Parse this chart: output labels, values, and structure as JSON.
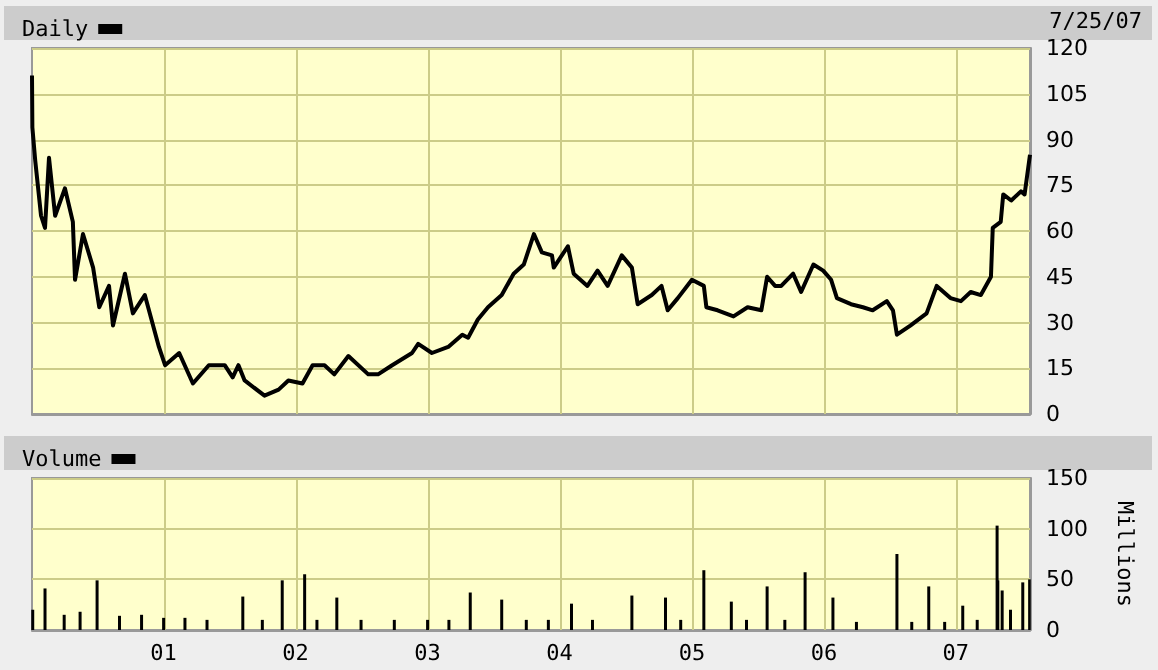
{
  "chart_data": [
    {
      "type": "line",
      "annotations": [
        "7/25/07"
      ],
      "legend": "top left",
      "grid": true,
      "tick_labels": "y",
      "xlim": [
        "2000-01-03",
        "2007-07-25"
      ],
      "xticks": [
        {
          "value": "2001-01-01",
          "label": null
        },
        {
          "value": "2002-01-01",
          "label": null
        },
        {
          "value": "2003-01-01",
          "label": null
        },
        {
          "value": "2004-01-01",
          "label": null
        },
        {
          "value": "2005-01-01",
          "label": null
        },
        {
          "value": "2006-01-01",
          "label": null
        },
        {
          "value": "2007-01-01",
          "label": null
        }
      ],
      "ylim": [
        0,
        120
      ],
      "yticks": [
        0,
        15,
        30,
        45,
        60,
        75,
        90,
        105,
        120
      ],
      "series": [
        {
          "name": "Daily",
          "color": "#000000",
          "x": [
            "2000-01-03",
            "2000-01-04",
            "2000-01-12",
            "2000-01-28",
            "2000-02-08",
            "2000-02-19",
            "2000-03-07",
            "2000-04-03",
            "2000-04-25",
            "2000-05-01",
            "2000-05-23",
            "2000-06-20",
            "2000-07-07",
            "2000-08-03",
            "2000-08-14",
            "2000-09-16",
            "2000-10-08",
            "2000-11-10",
            "2000-12-19",
            "2001-01-05",
            "2001-02-13",
            "2001-03-23",
            "2001-05-06",
            "2001-06-19",
            "2001-07-11",
            "2001-07-27",
            "2001-08-13",
            "2001-10-07",
            "2001-11-15",
            "2001-12-12",
            "2002-01-20",
            "2002-02-17",
            "2002-03-22",
            "2002-04-18",
            "2002-05-27",
            "2002-07-21",
            "2002-08-17",
            "2002-09-25",
            "2002-11-19",
            "2002-12-06",
            "2003-01-13",
            "2003-02-27",
            "2003-04-07",
            "2003-04-23",
            "2003-05-20",
            "2003-06-17",
            "2003-07-25",
            "2003-08-27",
            "2003-09-24",
            "2003-10-22",
            "2003-11-13",
            "2003-12-11",
            "2003-12-16",
            "2004-01-24",
            "2004-02-09",
            "2004-03-18",
            "2004-04-15",
            "2004-05-13",
            "2004-06-21",
            "2004-07-19",
            "2004-08-04",
            "2004-09-12",
            "2004-10-09",
            "2004-10-26",
            "2004-11-23",
            "2005-01-01",
            "2005-02-03",
            "2005-02-10",
            "2005-03-13",
            "2005-04-26",
            "2005-06-04",
            "2005-07-12",
            "2005-07-28",
            "2005-08-19",
            "2005-09-05",
            "2005-10-08",
            "2005-10-30",
            "2005-12-03",
            "2005-12-30",
            "2006-01-21",
            "2006-02-06",
            "2006-03-17",
            "2006-04-19",
            "2006-05-16",
            "2006-06-24",
            "2006-07-11",
            "2006-07-22",
            "2006-08-28",
            "2006-10-12",
            "2006-11-09",
            "2006-12-17",
            "2007-01-15",
            "2007-02-11",
            "2007-03-11",
            "2007-04-08",
            "2007-04-13",
            "2007-05-05",
            "2007-05-12",
            "2007-06-03",
            "2007-06-30",
            "2007-07-10",
            "2007-07-25"
          ],
          "values": [
            111,
            94,
            83,
            65,
            61,
            84,
            65,
            74,
            63,
            44,
            59,
            48,
            35,
            42,
            29,
            46,
            33,
            39,
            22,
            16,
            20,
            10,
            16,
            16,
            12,
            16,
            11,
            6,
            8,
            11,
            10,
            16,
            16,
            13,
            19,
            13,
            13,
            16,
            20,
            23,
            20,
            22,
            26,
            25,
            31,
            35,
            39,
            46,
            49,
            59,
            53,
            52,
            48,
            55,
            46,
            42,
            47,
            42,
            52,
            48,
            36,
            39,
            42,
            34,
            38,
            44,
            42,
            35,
            34,
            32,
            35,
            34,
            45,
            42,
            42,
            46,
            40,
            49,
            47,
            44,
            38,
            36,
            35,
            34,
            37,
            34,
            26,
            29,
            33,
            42,
            38,
            37,
            40,
            39,
            45,
            61,
            63,
            72,
            70,
            73,
            72,
            85
          ]
        }
      ]
    },
    {
      "type": "bar",
      "legend": "top left",
      "grid": true,
      "ylabel": "Millions",
      "xlim": [
        "2000-01-03",
        "2007-07-25"
      ],
      "xticks": [
        {
          "value": "2001-01-01",
          "label": "01"
        },
        {
          "value": "2002-01-01",
          "label": "02"
        },
        {
          "value": "2003-01-01",
          "label": "03"
        },
        {
          "value": "2004-01-01",
          "label": "04"
        },
        {
          "value": "2005-01-01",
          "label": "05"
        },
        {
          "value": "2006-01-01",
          "label": "06"
        },
        {
          "value": "2007-01-01",
          "label": "07"
        }
      ],
      "ylim": [
        0,
        150
      ],
      "yticks": [
        0,
        50,
        100,
        150
      ],
      "series": [
        {
          "name": "Volume",
          "color": "#000000",
          "x": [
            "2000-01-05",
            "2000-02-08",
            "2000-04-01",
            "2000-05-15",
            "2000-07-01",
            "2000-09-01",
            "2000-11-01",
            "2001-01-01",
            "2001-03-01",
            "2001-05-01",
            "2001-08-08",
            "2001-10-01",
            "2001-11-25",
            "2002-01-26",
            "2002-03-01",
            "2002-04-25",
            "2002-07-01",
            "2002-10-01",
            "2003-01-01",
            "2003-03-01",
            "2003-04-29",
            "2003-07-25",
            "2003-10-01",
            "2003-12-01",
            "2004-02-03",
            "2004-04-01",
            "2004-07-19",
            "2004-10-20",
            "2004-12-01",
            "2005-02-03",
            "2005-04-20",
            "2005-06-01",
            "2005-07-28",
            "2005-09-15",
            "2005-11-10",
            "2006-01-26",
            "2006-04-01",
            "2006-07-22",
            "2006-09-01",
            "2006-10-18",
            "2006-12-01",
            "2007-01-20",
            "2007-03-01",
            "2007-04-25",
            "2007-04-27",
            "2007-05-09",
            "2007-06-01",
            "2007-07-05",
            "2007-07-24"
          ],
          "values": [
            20,
            41,
            15,
            18,
            49,
            14,
            15,
            12,
            12,
            10,
            33,
            10,
            49,
            55,
            10,
            32,
            10,
            10,
            10,
            10,
            37,
            30,
            10,
            10,
            26,
            10,
            34,
            32,
            10,
            59,
            28,
            10,
            43,
            10,
            57,
            32,
            8,
            75,
            8,
            43,
            8,
            24,
            10,
            103,
            49,
            39,
            20,
            47,
            50
          ]
        }
      ]
    }
  ]
}
